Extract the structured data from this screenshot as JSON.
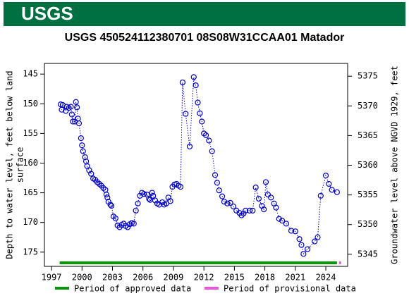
{
  "header": {
    "logo": "USGS"
  },
  "chart_data": {
    "type": "scatter",
    "title": "USGS 450524112380701 08S08W31CCAA01 Matador",
    "ylabel": [
      "Depth to water level, feet below land",
      "surface"
    ],
    "y2label": "Groundwater level above NGVD 1929, feet",
    "xlim": [
      1996.3,
      2026.15
    ],
    "xticks": [
      1997,
      2000,
      2003,
      2006,
      2009,
      2012,
      2015,
      2018,
      2021,
      2024
    ],
    "ylim": [
      143.2,
      177.4
    ],
    "y_inverted": true,
    "yticks": [
      145,
      150,
      155,
      160,
      165,
      170,
      175
    ],
    "y2lim": [
      5377.16,
      5342.96
    ],
    "y2ticks": [
      5345,
      5350,
      5355,
      5360,
      5365,
      5370,
      5375
    ],
    "grid": false,
    "series": [
      {
        "name": "Depth to water level",
        "color": "#0000cc",
        "x": [
          1997.9,
          1998.0,
          1998.1,
          1998.4,
          1998.5,
          1998.7,
          1998.9,
          1999.0,
          1999.1,
          1999.3,
          1999.4,
          1999.5,
          1999.6,
          1999.7,
          1999.9,
          2000.0,
          2000.1,
          2000.3,
          2000.4,
          2000.5,
          2000.7,
          2000.9,
          2001.1,
          2001.3,
          2001.5,
          2001.7,
          2001.9,
          2002.1,
          2002.3,
          2002.4,
          2002.5,
          2002.6,
          2002.8,
          2002.9,
          2003.1,
          2003.3,
          2003.5,
          2003.7,
          2003.9,
          2004.1,
          2004.3,
          2004.5,
          2004.7,
          2004.9,
          2005.1,
          2005.3,
          2005.5,
          2005.7,
          2005.9,
          2006.1,
          2006.4,
          2006.6,
          2006.7,
          2006.9,
          2007.0,
          2007.2,
          2007.4,
          2007.6,
          2007.9,
          2008.1,
          2008.3,
          2008.5,
          2008.7,
          2008.9,
          2009.1,
          2009.3,
          2009.5,
          2009.7,
          2009.9,
          2010.2,
          2010.6,
          2011.0,
          2011.2,
          2011.4,
          2011.6,
          2011.8,
          2012.0,
          2012.2,
          2012.5,
          2012.8,
          2013.1,
          2013.3,
          2013.5,
          2013.8,
          2014.0,
          2014.3,
          2014.6,
          2014.9,
          2015.2,
          2015.5,
          2015.7,
          2015.9,
          2016.1,
          2016.5,
          2016.8,
          2017.1,
          2017.4,
          2017.7,
          2017.9,
          2018.1,
          2018.3,
          2018.6,
          2018.9,
          2019.1,
          2019.4,
          2019.7,
          2020.1,
          2020.6,
          2021.0,
          2021.4,
          2021.6,
          2021.8,
          2022.2,
          2022.9,
          2023.2,
          2023.5,
          2024.0,
          2024.3,
          2024.6,
          2025.1
        ],
        "values": [
          150.1,
          151.0,
          150.2,
          151.2,
          150.5,
          150.7,
          150.5,
          151.8,
          153.0,
          153.0,
          149.7,
          150.6,
          152.5,
          153.3,
          155.8,
          157.0,
          158.0,
          159.0,
          159.7,
          160.5,
          161.2,
          161.8,
          162.6,
          162.8,
          163.2,
          163.5,
          163.8,
          164.2,
          164.5,
          165.3,
          165.8,
          166.5,
          167.0,
          167.2,
          169.0,
          169.3,
          170.5,
          170.8,
          170.4,
          170.2,
          170.6,
          170.8,
          170.3,
          170.1,
          170.2,
          168.0,
          166.8,
          165.5,
          165.0,
          165.2,
          165.3,
          166.0,
          166.2,
          165.0,
          165.5,
          166.3,
          166.8,
          167.0,
          166.6,
          167.0,
          166.8,
          165.8,
          166.4,
          164.0,
          163.6,
          163.5,
          163.8,
          164.0,
          146.4,
          151.7,
          157.2,
          145.5,
          146.9,
          149.8,
          151.6,
          153.0,
          155.0,
          155.3,
          156.2,
          158.0,
          162.0,
          163.3,
          164.6,
          165.6,
          166.5,
          166.8,
          166.7,
          167.3,
          168.0,
          168.4,
          168.8,
          168.5,
          168.0,
          168.0,
          168.0,
          164.1,
          166.0,
          167.2,
          167.8,
          163.2,
          165.3,
          165.8,
          166.8,
          167.5,
          169.4,
          169.7,
          170.2,
          171.4,
          171.5,
          172.8,
          173.8,
          175.3,
          174.5,
          173.2,
          172.5,
          165.5,
          162.1,
          163.5,
          164.5,
          164.9
        ]
      }
    ],
    "periods": [
      {
        "name": "Period of approved data",
        "color": "#009900",
        "range": [
          1997.8,
          2025.1
        ]
      },
      {
        "name": "Period of provisional data",
        "color": "#ee55dd",
        "range": [
          2025.3,
          2025.5
        ]
      }
    ]
  }
}
